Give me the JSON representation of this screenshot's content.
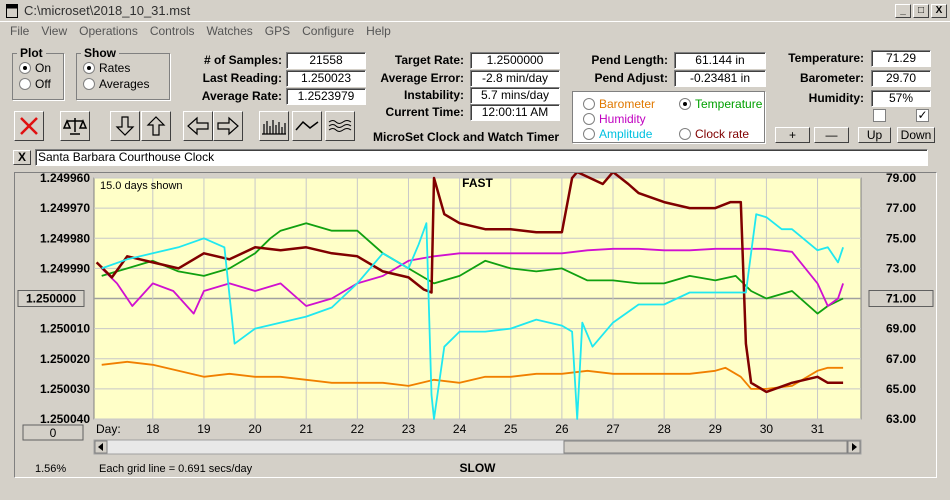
{
  "window": {
    "title": "C:\\microset\\2018_10_31.mst",
    "minimize": "_",
    "maximize": "□",
    "close": "X"
  },
  "menu": [
    "File",
    "View",
    "Operations",
    "Controls",
    "Watches",
    "GPS",
    "Configure",
    "Help"
  ],
  "plot_group": {
    "legend": "Plot",
    "options": [
      "On",
      "Off"
    ],
    "selected": "On"
  },
  "show_group": {
    "legend": "Show",
    "options": [
      "Rates",
      "Averages"
    ],
    "selected": "Rates"
  },
  "stats": {
    "samples_label": "# of Samples:",
    "samples": "21558",
    "last_label": "Last Reading:",
    "last": "1.250023",
    "avg_label": "Average Rate:",
    "avg": "1.2523979",
    "target_label": "Target Rate:",
    "target": "1.2500000",
    "err_label": "Average Error:",
    "err": "-2.8 min/day",
    "inst_label": "Instability:",
    "inst": "5.7 mins/day",
    "time_label": "Current Time:",
    "time": "12:00:11 AM",
    "pend_len_label": "Pend Length:",
    "pend_len": "61.144 in",
    "pend_adj_label": "Pend Adjust:",
    "pend_adj": "-0.23481 in",
    "temp_label": "Temperature:",
    "temp": "71.29",
    "baro_label": "Barometer:",
    "baro": "29.70",
    "hum_label": "Humidity:",
    "hum": "57%"
  },
  "program_title": "MicroSet Clock and Watch Timer",
  "sensor_select": {
    "options": [
      {
        "label": "Barometer",
        "color": "#e07800",
        "selected": false
      },
      {
        "label": "Temperature",
        "color": "#00a000",
        "selected": true
      },
      {
        "label": "Humidity",
        "color": "#c000c0",
        "selected": false
      },
      {
        "label": "Clock rate",
        "color": "#800000",
        "selected": false
      },
      {
        "label": "Amplitude",
        "color": "#00c0e0",
        "selected": false
      }
    ]
  },
  "adjust_buttons": [
    "+",
    "—",
    "Up",
    "Down"
  ],
  "toolbar_icons": [
    "close-icon",
    "scale-icon",
    "down-arrow-icon",
    "up-arrow-icon",
    "left-arrow-icon",
    "right-arrow-icon",
    "bars-icon",
    "wave-icon",
    "multi-wave-icon"
  ],
  "clock_name": "Santa Barbara Courthouse Clock",
  "clear_button": "X",
  "chart_data": {
    "type": "line",
    "top_label": "FAST",
    "bottom_label": "SLOW",
    "days_shown": "15.0 days shown",
    "grid_note": "Each grid line = 0.691 secs/day",
    "percent": "1.56%",
    "left_button": "1.250000",
    "right_button": "71.00",
    "zero_button": "0",
    "day_label": "Day:",
    "x_ticks": [
      "18",
      "19",
      "20",
      "21",
      "22",
      "23",
      "24",
      "25",
      "26",
      "27",
      "28",
      "29",
      "30",
      "31"
    ],
    "left_ticks": [
      "1.249960",
      "1.249970",
      "1.249980",
      "1.249990",
      "",
      "1.250010",
      "1.250020",
      "1.250030",
      "1.250040"
    ],
    "right_ticks": [
      "79.00",
      "77.00",
      "75.00",
      "73.00",
      "",
      "69.00",
      "67.00",
      "65.00",
      "63.00"
    ],
    "ylim_left": [
      1.24996,
      1.25004
    ],
    "ylim_right": [
      63,
      79
    ],
    "xlim": [
      16.85,
      31.85
    ],
    "series": [
      {
        "name": "Barometer",
        "color": "#f08000",
        "axis": "left",
        "x": [
          17,
          17.5,
          18,
          18.5,
          19,
          19.5,
          20,
          20.5,
          21,
          21.5,
          22,
          22.5,
          23,
          23.5,
          24,
          24.5,
          25,
          25.5,
          26,
          26.5,
          27,
          27.5,
          28,
          28.5,
          29,
          29.2,
          29.5,
          29.7,
          30,
          30.5,
          31,
          31.2,
          31.5
        ],
        "y": [
          1.250022,
          1.250021,
          1.250022,
          1.250024,
          1.250026,
          1.250025,
          1.250026,
          1.250026,
          1.250027,
          1.250028,
          1.250028,
          1.250028,
          1.250029,
          1.250027,
          1.250028,
          1.250026,
          1.250026,
          1.250025,
          1.250025,
          1.250024,
          1.250025,
          1.250025,
          1.250025,
          1.250025,
          1.250024,
          1.250023,
          1.250026,
          1.25003,
          1.25003,
          1.250029,
          1.250024,
          1.250023,
          1.250023
        ]
      },
      {
        "name": "Temperature",
        "color": "#10a010",
        "axis": "right",
        "x": [
          17,
          17.5,
          18,
          18.5,
          19,
          19.5,
          20,
          20.3,
          20.5,
          21,
          21.5,
          22,
          22.5,
          23,
          23.5,
          24,
          24.5,
          25,
          25.5,
          26,
          26.5,
          27,
          27.5,
          28,
          28.5,
          29,
          29.4,
          29.7,
          30,
          30.5,
          31,
          31.2,
          31.5
        ],
        "y": [
          72.5,
          73,
          73.5,
          72.8,
          72.5,
          73,
          74,
          75,
          75.5,
          76,
          75.5,
          75.5,
          74,
          73,
          72,
          72.5,
          73.5,
          73,
          72.8,
          73,
          72.2,
          72.2,
          72,
          72,
          72.5,
          72.2,
          72.5,
          71.5,
          71,
          71.5,
          70,
          70.5,
          71
        ]
      },
      {
        "name": "Humidity",
        "color": "#d010d0",
        "axis": "right",
        "x": [
          17,
          17.3,
          17.6,
          18,
          18.4,
          18.8,
          19,
          19.5,
          20,
          20.5,
          21,
          21.5,
          22,
          22.5,
          23,
          23.5,
          24,
          24.5,
          25,
          25.5,
          26,
          26.5,
          27,
          27.5,
          28,
          28.5,
          29,
          29.5,
          30,
          30.5,
          31,
          31.2,
          31.4,
          31.5
        ],
        "y": [
          73,
          72,
          70.5,
          72,
          71.5,
          70,
          71.5,
          72,
          71.5,
          72,
          70.5,
          71,
          72,
          72.5,
          73.5,
          73.8,
          74,
          74,
          74,
          74,
          74,
          74.2,
          74.3,
          74.3,
          74.2,
          74.2,
          74.3,
          74.3,
          74.3,
          74.1,
          72,
          70.5,
          71,
          72
        ]
      },
      {
        "name": "Clock rate",
        "color": "#800000",
        "axis": "left",
        "x": [
          16.9,
          17.2,
          17.5,
          18,
          18.5,
          19,
          19.5,
          20,
          20.5,
          21,
          21.5,
          22,
          22.5,
          23,
          23.3,
          23.45,
          23.5,
          23.7,
          24,
          24.5,
          25,
          25.5,
          26,
          26.2,
          26.3,
          26.8,
          27,
          27.3,
          27.5,
          28,
          28.5,
          29,
          29.3,
          29.5,
          29.6,
          29.7,
          30,
          30.5,
          31,
          31.2,
          31.5
        ],
        "y": [
          1.249988,
          1.249993,
          1.249986,
          1.249988,
          1.24999,
          1.249985,
          1.249987,
          1.249983,
          1.249984,
          1.249983,
          1.249985,
          1.249986,
          1.249991,
          1.249993,
          1.249997,
          1.249998,
          1.24996,
          1.249972,
          1.249975,
          1.249977,
          1.249977,
          1.249978,
          1.249978,
          1.24996,
          1.249958,
          1.249962,
          1.249958,
          1.249962,
          1.249965,
          1.249968,
          1.24997,
          1.24997,
          1.249968,
          1.249968,
          1.250015,
          1.250028,
          1.250031,
          1.250028,
          1.250026,
          1.250028,
          1.250028
        ]
      },
      {
        "name": "Amplitude",
        "color": "#20e8f0",
        "axis": "left",
        "x": [
          17,
          17.5,
          18,
          18.5,
          19,
          19.4,
          19.6,
          20,
          20.5,
          21,
          21.5,
          22,
          22.5,
          23,
          23.2,
          23.35,
          23.45,
          23.5,
          23.7,
          24,
          24.5,
          25,
          25.5,
          26,
          26.2,
          26.3,
          26.4,
          26.6,
          27,
          27.5,
          28,
          28.5,
          29,
          29.4,
          29.6,
          29.8,
          30,
          30.3,
          30.5,
          31,
          31.2,
          31.4,
          31.5
        ],
        "y": [
          1.24999,
          1.249987,
          1.249985,
          1.249983,
          1.24998,
          1.249983,
          1.250015,
          1.25001,
          1.250008,
          1.250006,
          1.250003,
          1.249995,
          1.249985,
          1.24999,
          1.249982,
          1.249975,
          1.250032,
          1.25004,
          1.250016,
          1.250011,
          1.250011,
          1.25001,
          1.250007,
          1.250009,
          1.250011,
          1.25004,
          1.250008,
          1.250016,
          1.250008,
          1.250002,
          1.250002,
          1.249998,
          1.249998,
          1.249998,
          1.249998,
          1.249972,
          1.249973,
          1.249977,
          1.249977,
          1.249984,
          1.249983,
          1.249988,
          1.249983
        ]
      }
    ]
  }
}
